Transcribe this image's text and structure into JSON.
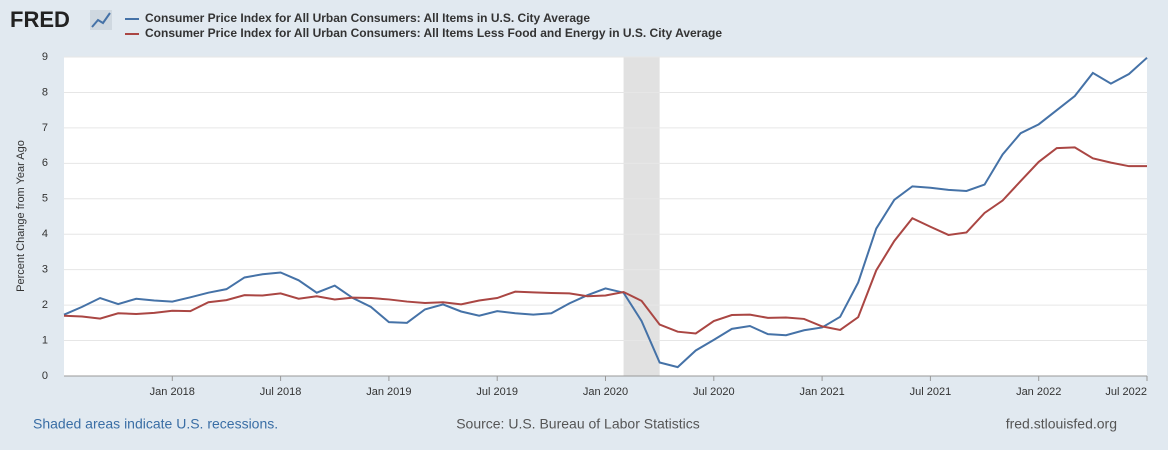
{
  "logo": "FRED",
  "chart_data": {
    "type": "line",
    "ylabel": "Percent Change from Year Ago",
    "x": [
      "2017-07",
      "2017-08",
      "2017-09",
      "2017-10",
      "2017-11",
      "2017-12",
      "2018-01",
      "2018-02",
      "2018-03",
      "2018-04",
      "2018-05",
      "2018-06",
      "2018-07",
      "2018-08",
      "2018-09",
      "2018-10",
      "2018-11",
      "2018-12",
      "2019-01",
      "2019-02",
      "2019-03",
      "2019-04",
      "2019-05",
      "2019-06",
      "2019-07",
      "2019-08",
      "2019-09",
      "2019-10",
      "2019-11",
      "2019-12",
      "2020-01",
      "2020-02",
      "2020-03",
      "2020-04",
      "2020-05",
      "2020-06",
      "2020-07",
      "2020-08",
      "2020-09",
      "2020-10",
      "2020-11",
      "2020-12",
      "2021-01",
      "2021-02",
      "2021-03",
      "2021-04",
      "2021-05",
      "2021-06",
      "2021-07",
      "2021-08",
      "2021-09",
      "2021-10",
      "2021-11",
      "2021-12",
      "2022-01",
      "2022-02",
      "2022-03",
      "2022-04",
      "2022-05",
      "2022-06",
      "2022-07"
    ],
    "series": [
      {
        "name": "Consumer Price Index for All Urban Consumers: All Items in U.S. City Average",
        "color": "#4572a7",
        "values": [
          1.73,
          1.95,
          2.2,
          2.03,
          2.18,
          2.13,
          2.1,
          2.22,
          2.35,
          2.45,
          2.78,
          2.87,
          2.92,
          2.7,
          2.35,
          2.55,
          2.2,
          1.95,
          1.52,
          1.5,
          1.88,
          2.02,
          1.82,
          1.7,
          1.83,
          1.77,
          1.73,
          1.77,
          2.05,
          2.28,
          2.47,
          2.35,
          1.55,
          0.38,
          0.25,
          0.72,
          1.02,
          1.33,
          1.41,
          1.18,
          1.15,
          1.29,
          1.37,
          1.67,
          2.64,
          4.16,
          4.97,
          5.35,
          5.31,
          5.25,
          5.22,
          5.4,
          6.25,
          6.85,
          7.1,
          7.5,
          7.9,
          8.55,
          8.25,
          8.52,
          8.98
        ]
      },
      {
        "name": "Consumer Price Index for All Urban Consumers: All Items Less Food and Energy in U.S. City Average",
        "color": "#aa4643",
        "values": [
          1.7,
          1.68,
          1.62,
          1.77,
          1.75,
          1.78,
          1.84,
          1.83,
          2.08,
          2.14,
          2.28,
          2.27,
          2.33,
          2.18,
          2.25,
          2.16,
          2.21,
          2.2,
          2.16,
          2.1,
          2.06,
          2.08,
          2.02,
          2.13,
          2.2,
          2.38,
          2.36,
          2.34,
          2.33,
          2.25,
          2.27,
          2.37,
          2.12,
          1.45,
          1.25,
          1.2,
          1.55,
          1.72,
          1.73,
          1.64,
          1.65,
          1.61,
          1.4,
          1.3,
          1.66,
          2.98,
          3.81,
          4.45,
          4.21,
          3.98,
          4.05,
          4.6,
          4.95,
          5.5,
          6.04,
          6.43,
          6.45,
          6.14,
          6.02,
          5.92,
          5.92
        ]
      }
    ],
    "xticks": [
      {
        "value": "2018-01",
        "label": "Jan 2018"
      },
      {
        "value": "2018-07",
        "label": "Jul 2018"
      },
      {
        "value": "2019-01",
        "label": "Jan 2019"
      },
      {
        "value": "2019-07",
        "label": "Jul 2019"
      },
      {
        "value": "2020-01",
        "label": "Jan 2020"
      },
      {
        "value": "2020-07",
        "label": "Jul 2020"
      },
      {
        "value": "2021-01",
        "label": "Jan 2021"
      },
      {
        "value": "2021-07",
        "label": "Jul 2021"
      },
      {
        "value": "2022-01",
        "label": "Jan 2022"
      },
      {
        "value": "2022-07",
        "label": "Jul 2022"
      }
    ],
    "ylim": [
      0,
      9
    ],
    "yticks": [
      0,
      1,
      2,
      3,
      4,
      5,
      6,
      7,
      8,
      9
    ],
    "grid": true,
    "recessions": [
      [
        "2020-02",
        "2020-04"
      ]
    ],
    "recession_note": "Shaded areas indicate U.S. recessions.",
    "source": "Source: U.S. Bureau of Labor Statistics",
    "site": "fred.stlouisfed.org"
  }
}
